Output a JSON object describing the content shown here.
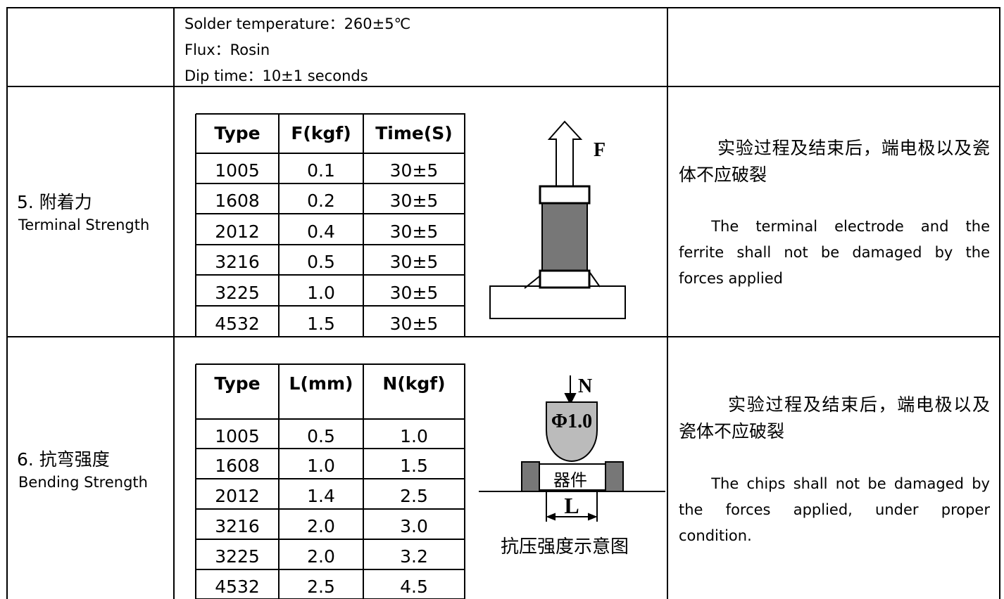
{
  "solder_test": {
    "conditions": [
      "Solder temperature：260±5℃",
      "Flux：Rosin",
      "Dip time：10±1 seconds"
    ]
  },
  "terminal_strength": {
    "item": "5.  附着力",
    "item_en": "Terminal Strength",
    "table": {
      "header": [
        "Type",
        "F(kgf)",
        "Time(S)"
      ],
      "rows": [
        [
          "1005",
          "0.1",
          "30±5"
        ],
        [
          "1608",
          "0.2",
          "30±5"
        ],
        [
          "2012",
          "0.4",
          "30±5"
        ],
        [
          "3216",
          "0.5",
          "30±5"
        ],
        [
          "3225",
          "1.0",
          "30±5"
        ],
        [
          "4532",
          "1.5",
          "30±5"
        ]
      ]
    },
    "diagram": {
      "force_label": "F"
    },
    "requirement_cn": "实验过程及结束后，端电极以及瓷体不应破裂",
    "requirement_en": "The terminal electrode and the ferrite shall not be damaged by the forces applied"
  },
  "bending_strength": {
    "item": "6.  抗弯强度",
    "item_en": "Bending Strength",
    "table": {
      "header": [
        "Type",
        "L(mm)",
        "N(kgf)"
      ],
      "rows": [
        [
          "1005",
          "0.5",
          "1.0"
        ],
        [
          "1608",
          "1.0",
          "1.5"
        ],
        [
          "2012",
          "1.4",
          "2.5"
        ],
        [
          "3216",
          "2.0",
          "3.0"
        ],
        [
          "3225",
          "2.0",
          "3.2"
        ],
        [
          "4532",
          "2.5",
          "4.5"
        ]
      ]
    },
    "diagram": {
      "force_label": "N",
      "tip_label": "Φ1.0",
      "part_label": "器件",
      "span_label": "L",
      "caption": "抗压强度示意图"
    },
    "requirement_cn": "实验过程及结束后，端电极以及瓷体不应破裂",
    "requirement_en": "The chips shall not be damaged by the forces applied, under proper condition."
  }
}
